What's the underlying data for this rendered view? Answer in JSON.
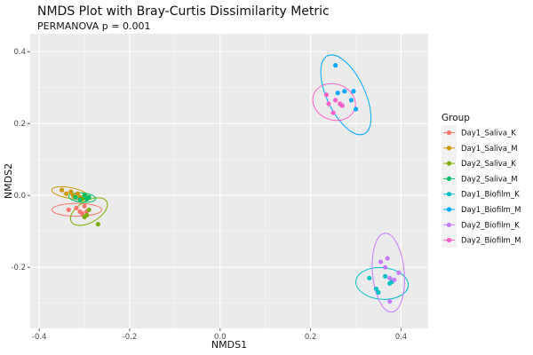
{
  "chart_data": {
    "type": "scatter",
    "title": "NMDS Plot with Bray-Curtis Dissimilarity Metric",
    "subtitle": "PERMANOVA p = 0.001",
    "xlabel": "NMDS1",
    "ylabel": "NMDS2",
    "xlim": [
      -0.42,
      0.46
    ],
    "ylim": [
      -0.37,
      0.45
    ],
    "x_ticks": [
      -0.4,
      -0.2,
      0.0,
      0.2,
      0.4
    ],
    "y_ticks": [
      -0.2,
      0.0,
      0.2,
      0.4
    ],
    "x_tick_labels": [
      "-0.4",
      "-0.2",
      "0.0",
      "0.2",
      "0.4"
    ],
    "y_tick_labels": [
      "-0.2",
      "0.0",
      "0.2",
      "0.4"
    ],
    "grid": true,
    "legend": {
      "title": "Group",
      "position": "right"
    },
    "series": [
      {
        "name": "Day1_Saliva_K",
        "color": "#F8766D",
        "points": [
          [
            -0.335,
            -0.04
          ],
          [
            -0.31,
            -0.045
          ],
          [
            -0.3,
            -0.03
          ],
          [
            -0.295,
            -0.045
          ],
          [
            -0.318,
            -0.035
          ],
          [
            -0.305,
            -0.05
          ]
        ],
        "ellipse": {
          "cx": -0.317,
          "cy": -0.04,
          "rx": 0.055,
          "ry": 0.018,
          "angle": 0
        }
      },
      {
        "name": "Day1_Saliva_M",
        "color": "#CD9600",
        "points": [
          [
            -0.35,
            0.015
          ],
          [
            -0.34,
            0.005
          ],
          [
            -0.33,
            0.01
          ],
          [
            -0.325,
            0.0
          ],
          [
            -0.315,
            0.005
          ],
          [
            -0.31,
            -0.005
          ]
        ],
        "ellipse": {
          "cx": -0.333,
          "cy": 0.007,
          "rx": 0.04,
          "ry": 0.015,
          "angle": -10
        }
      },
      {
        "name": "Day2_Saliva_K",
        "color": "#7CAE00",
        "points": [
          [
            -0.305,
            -0.01
          ],
          [
            -0.3,
            -0.06
          ],
          [
            -0.29,
            -0.04
          ],
          [
            -0.27,
            -0.08
          ],
          [
            -0.295,
            -0.055
          ]
        ],
        "ellipse": {
          "cx": -0.29,
          "cy": -0.045,
          "rx": 0.045,
          "ry": 0.03,
          "angle": 30
        }
      },
      {
        "name": "Day2_Saliva_M",
        "color": "#00BE67",
        "points": [
          [
            -0.32,
            -0.005
          ],
          [
            -0.3,
            0.0
          ],
          [
            -0.295,
            -0.01
          ],
          [
            -0.29,
            -0.005
          ],
          [
            -0.31,
            -0.012
          ]
        ],
        "ellipse": {
          "cx": -0.305,
          "cy": -0.006,
          "rx": 0.03,
          "ry": 0.013,
          "angle": -5
        }
      },
      {
        "name": "Day1_Biofilm_K",
        "color": "#00BFC4",
        "points": [
          [
            0.33,
            -0.23
          ],
          [
            0.345,
            -0.26
          ],
          [
            0.365,
            -0.225
          ],
          [
            0.38,
            -0.24
          ],
          [
            0.35,
            -0.27
          ],
          [
            0.375,
            -0.245
          ]
        ],
        "ellipse": {
          "cx": 0.358,
          "cy": -0.245,
          "rx": 0.058,
          "ry": 0.044,
          "angle": -5
        }
      },
      {
        "name": "Day1_Biofilm_M",
        "color": "#00A9FF",
        "points": [
          [
            0.255,
            0.362
          ],
          [
            0.26,
            0.285
          ],
          [
            0.275,
            0.29
          ],
          [
            0.29,
            0.265
          ],
          [
            0.295,
            0.29
          ],
          [
            0.3,
            0.24
          ],
          [
            0.27,
            0.25
          ]
        ],
        "ellipse": {
          "cx": 0.278,
          "cy": 0.28,
          "rx": 0.042,
          "ry": 0.12,
          "angle": 25
        }
      },
      {
        "name": "Day2_Biofilm_K",
        "color": "#C77CFF",
        "points": [
          [
            0.355,
            -0.185
          ],
          [
            0.37,
            -0.175
          ],
          [
            0.365,
            -0.2
          ],
          [
            0.375,
            -0.23
          ],
          [
            0.385,
            -0.235
          ],
          [
            0.395,
            -0.215
          ],
          [
            0.375,
            -0.295
          ]
        ],
        "ellipse": {
          "cx": 0.372,
          "cy": -0.215,
          "rx": 0.035,
          "ry": 0.11,
          "angle": 5
        }
      },
      {
        "name": "Day2_Biofilm_M",
        "color": "#FF61CC",
        "points": [
          [
            0.235,
            0.28
          ],
          [
            0.24,
            0.255
          ],
          [
            0.25,
            0.23
          ],
          [
            0.255,
            0.265
          ],
          [
            0.265,
            0.255
          ],
          [
            0.27,
            0.25
          ]
        ],
        "ellipse": {
          "cx": 0.252,
          "cy": 0.26,
          "rx": 0.048,
          "ry": 0.05,
          "angle": -20
        }
      }
    ]
  }
}
